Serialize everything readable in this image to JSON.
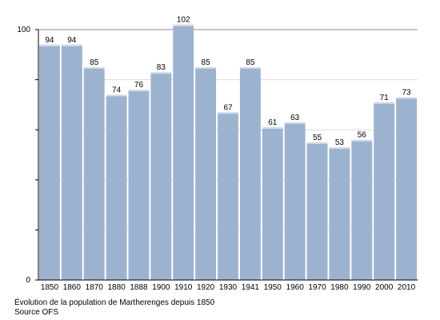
{
  "chart_data": {
    "type": "bar",
    "title": "",
    "xlabel": "",
    "ylabel": "",
    "categories": [
      "1850",
      "1860",
      "1870",
      "1880",
      "1888",
      "1900",
      "1910",
      "1920",
      "1930",
      "1941",
      "1950",
      "1960",
      "1970",
      "1980",
      "1990",
      "2000",
      "2010"
    ],
    "values": [
      94,
      94,
      85,
      74,
      76,
      83,
      102,
      85,
      67,
      85,
      61,
      63,
      55,
      53,
      56,
      71,
      73
    ],
    "data_labels": [
      "94",
      "94",
      "85",
      "74",
      "76",
      "83",
      "102",
      "85",
      "67",
      "85",
      "61",
      "63",
      "55",
      "53",
      "56",
      "71",
      "73"
    ],
    "ylim": [
      0,
      100
    ],
    "y_tick_labels": [
      "0",
      "100"
    ],
    "grid": true,
    "bar_color": "#9cb3d0",
    "bar_top_color": "#ffffff"
  },
  "caption": {
    "line1": "Évolution de la population de Martherenges depuis 1850",
    "line2": "Source OFS"
  }
}
